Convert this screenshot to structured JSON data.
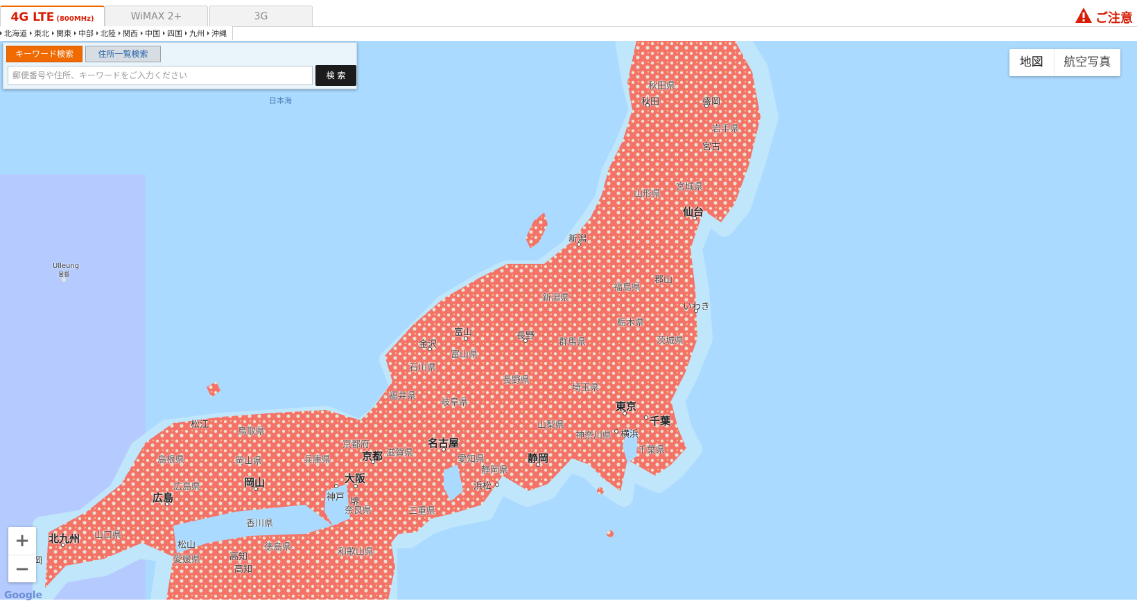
{
  "tabs": [
    {
      "label": "4G LTE",
      "sub": "(800MHz)",
      "active": true
    },
    {
      "label": "WiMAX 2+",
      "sub": "",
      "active": false
    },
    {
      "label": "3G",
      "sub": "",
      "active": false
    }
  ],
  "notice": {
    "label": "ご注意"
  },
  "regions": [
    "北海道",
    "東北",
    "関東",
    "中部",
    "北陸",
    "関西",
    "中国",
    "四国",
    "九州",
    "沖縄"
  ],
  "search": {
    "tab_keyword": "キーワード検索",
    "tab_address": "住所一覧検索",
    "placeholder": "郵便番号や住所、キーワードをご入力ください",
    "button": "検 索"
  },
  "map_type": {
    "map": "地図",
    "satellite": "航空写真"
  },
  "zoom": {
    "in": "+",
    "out": "−"
  },
  "attribution": "Google",
  "colors": {
    "coverage": "#f47268",
    "sea": "#aadaff",
    "land": "#e9e4d3",
    "accent": "#f06a00"
  },
  "map_labels": {
    "sea_of_japan": "日本海",
    "ulleung": "Ulleung",
    "ulleung_kr": "울릉",
    "akita_pref": "秋田県",
    "akita": "秋田",
    "morioka": "盛岡",
    "iwate_pref": "岩手県",
    "miyako": "宮古",
    "yamagata_pref": "山形県",
    "miyagi_pref": "宮城県",
    "sendai": "仙台",
    "niigata": "新潟",
    "fukushima_pref": "福島県",
    "koriyama": "郡山",
    "niigata_pref": "新潟県",
    "iwaki": "いわき",
    "tochigi_pref": "栃木県",
    "ibaraki_pref": "茨城県",
    "toyama": "富山",
    "kanazawa": "金沢",
    "nagano": "長野",
    "gunma_pref": "群馬県",
    "toyama_pref": "富山県",
    "ishikawa_pref": "石川県",
    "nagano_pref": "長野県",
    "saitama_pref": "埼玉県",
    "fukui_pref": "福井県",
    "gifu_pref": "岐阜県",
    "tokyo": "東京",
    "chiba": "千葉",
    "yamanashi_pref": "山梨県",
    "kanagawa_pref": "神奈川県",
    "yokohama": "横浜",
    "chiba_pref": "千葉県",
    "matsue": "松江",
    "tottori_pref": "鳥取県",
    "kyoto_pref": "京都府",
    "nagoya": "名古屋",
    "shimane_pref": "島根県",
    "hyogo_pref": "兵庫県",
    "kyoto": "京都",
    "shiga_pref": "滋賀県",
    "aichi_pref": "愛知県",
    "shizuoka": "静岡",
    "okayama_pref": "岡山県",
    "okayama": "岡山",
    "osaka": "大阪",
    "shizuoka_pref": "静岡県",
    "hiroshima_pref": "広島県",
    "hamamatsu": "浜松",
    "kobe": "神戸",
    "sakai": "堺",
    "hiroshima": "広島",
    "mie_pref": "三重県",
    "nara_pref": "奈良県",
    "kagawa_pref": "香川県",
    "yamaguchi_pref": "山口県",
    "kitakyushu": "北九州",
    "matsuyama": "松山",
    "tokushima_pref": "徳島県",
    "wakayama_pref": "和歌山県",
    "fukuoka": "福岡",
    "ehime_pref": "愛媛県",
    "kochi_pref": "高知",
    "kochi_city": "高知"
  }
}
